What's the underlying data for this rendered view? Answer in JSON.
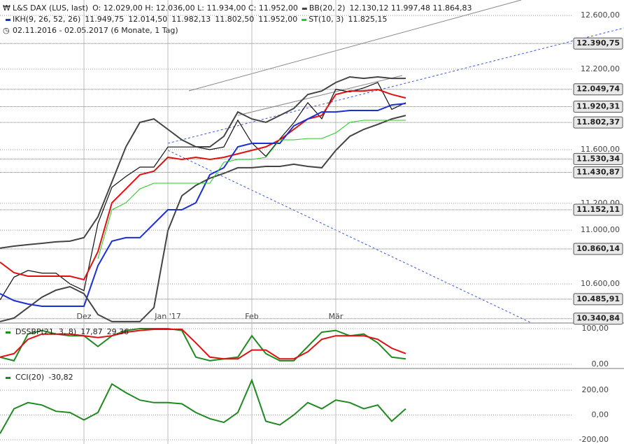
{
  "chart_data": {
    "type": "line",
    "header": "02.11.2016 - 02.05.2017   (6 Monate, 1 Tag)",
    "categories": [
      null,
      null,
      null,
      null,
      null,
      null,
      "Dez",
      null,
      null,
      null,
      null,
      null,
      "Jan '17",
      null,
      null,
      null,
      null,
      null,
      "Feb",
      null,
      null,
      null,
      null,
      null,
      "Mär",
      null,
      null,
      null,
      null,
      null
    ],
    "ylim": [
      10308,
      12715
    ],
    "yticks": [
      {
        "value": 12600,
        "label": "12.600,00"
      },
      {
        "value": 12200,
        "label": "12.200,00"
      },
      {
        "value": 11600,
        "label": "11.600,00"
      },
      {
        "value": 11200,
        "label": "11.200,00"
      },
      {
        "value": 11000,
        "label": "11.000,00"
      },
      {
        "value": 10600,
        "label": "10.600,00"
      }
    ],
    "annotations": [
      {
        "value": 12390.75,
        "label": "12.390,75"
      },
      {
        "value": 12049.74,
        "label": "12.049,74"
      },
      {
        "value": 11920.31,
        "label": "11.920,31"
      },
      {
        "value": 11802.37,
        "label": "11.802,37"
      },
      {
        "value": 11530.34,
        "label": "11.530,34"
      },
      {
        "value": 11430.87,
        "label": "11.430,87"
      },
      {
        "value": 11152.11,
        "label": "11.152,11"
      },
      {
        "value": 10860.14,
        "label": "10.860,14"
      },
      {
        "value": 10485.91,
        "label": "10.485,91"
      },
      {
        "value": 10340.84,
        "label": "10.340,84"
      }
    ],
    "series": [
      {
        "name": "L&S DAX (LUS, last)",
        "color": "#111111",
        "stats": [
          {
            "text": "O: 12.029,00  H: 12.036,00  L: 11.934,00  C: 11.952,00",
            "color": "#222222"
          }
        ],
        "values": [
          10480,
          10650,
          10700,
          10680,
          10680,
          10600,
          10550,
          11050,
          11320,
          11400,
          11470,
          11470,
          11620,
          11620,
          11620,
          11600,
          11620,
          11820,
          11650,
          11550,
          11680,
          11800,
          11950,
          11830,
          12050,
          12030,
          12060,
          12100,
          11900,
          11950
        ]
      },
      {
        "name": "IKH(9, 26, 52, 26)",
        "color": "#1a2fd6",
        "stats": [
          {
            "text": "11.949,75",
            "color": "#1a2fd6"
          },
          {
            "text": "12.014,50",
            "color": "#e01010"
          },
          {
            "text": "11.982,13",
            "color": "#1f8a1f"
          },
          {
            "text": "11.802,50",
            "color": "#1f8a1f"
          },
          {
            "text": "11.952,00",
            "color": "#c08a30"
          }
        ],
        "tenkan_color": "#e01010",
        "tenkan": [
          10762,
          10683,
          10657,
          10657,
          10657,
          10657,
          10631,
          10840,
          11204,
          11308,
          11413,
          11439,
          11543,
          11527,
          11543,
          11527,
          11543,
          11569,
          11595,
          11621,
          11673,
          11751,
          11829,
          11855,
          12011,
          12037,
          12037,
          12048,
          12011,
          11985
        ],
        "kijun": [
          10527,
          10475,
          10449,
          10433,
          10433,
          10433,
          10433,
          10735,
          10918,
          10944,
          10944,
          11048,
          11152,
          11152,
          11204,
          11413,
          11465,
          11621,
          11647,
          11647,
          11647,
          11777,
          11829,
          11881,
          11881,
          11892,
          11892,
          11892,
          11933,
          11944
        ]
      },
      {
        "name": "BB(20, 2)",
        "color": "#444444",
        "stats": [
          {
            "text": "12.130,12  11.997,48  11.864,83",
            "color": "#222222"
          }
        ],
        "upper": [
          10866,
          10881,
          10892,
          10902,
          10913,
          10918,
          10944,
          11100,
          11360,
          11621,
          11803,
          11829,
          11751,
          11673,
          11621,
          11621,
          11699,
          11881,
          11829,
          11803,
          11855,
          11907,
          12011,
          12037,
          12100,
          12142,
          12131,
          12142,
          12131,
          12131
        ],
        "lower": [
          10319,
          10345,
          10423,
          10501,
          10553,
          10579,
          10527,
          10371,
          10319,
          10319,
          10319,
          10423,
          10996,
          11256,
          11334,
          11387,
          11423,
          11465,
          11465,
          11475,
          11475,
          11491,
          11475,
          11465,
          11595,
          11699,
          11751,
          11788,
          11829,
          11855
        ]
      },
      {
        "name": "ST(10, 3)",
        "color": "#22cc22",
        "stats": [
          {
            "text": "11.825,15",
            "color": "#1f8a1f"
          }
        ],
        "values": [
          null,
          null,
          null,
          null,
          null,
          null,
          null,
          10788,
          11152,
          11204,
          11308,
          11350,
          11350,
          11350,
          11350,
          11350,
          11506,
          11527,
          11527,
          11543,
          11673,
          11673,
          11683,
          11683,
          11725,
          11803,
          11819,
          11819,
          11819,
          11819
        ]
      }
    ],
    "panels": [
      {
        "name": "DSSBP(21, 3, 8)",
        "ylim": [
          -11.8,
          115.7
        ],
        "yticks": [
          {
            "value": 100,
            "label": "100,00"
          },
          {
            "value": 0,
            "label": "0,00"
          }
        ],
        "series": [
          {
            "color": "#1f8a1f",
            "stat": "17,87",
            "values": [
              20,
              10,
              85,
              95,
              85,
              80,
              80,
              50,
              80,
              95,
              100,
              100,
              100,
              95,
              20,
              10,
              15,
              20,
              80,
              30,
              10,
              10,
              50,
              90,
              95,
              80,
              85,
              60,
              20,
              15
            ]
          },
          {
            "color": "#e01010",
            "stat": "29,36",
            "values": [
              20,
              30,
              70,
              85,
              85,
              85,
              80,
              75,
              80,
              90,
              95,
              98,
              98,
              98,
              60,
              20,
              15,
              15,
              40,
              40,
              15,
              15,
              35,
              70,
              80,
              80,
              80,
              70,
              45,
              30
            ]
          }
        ]
      },
      {
        "name": "CCI(20)",
        "ylim": [
          -234,
          375
        ],
        "yticks": [
          {
            "value": 200,
            "label": "200,00"
          },
          {
            "value": 0,
            "label": "0,00"
          },
          {
            "value": -200,
            "label": "-200,00"
          }
        ],
        "series": [
          {
            "color": "#1f8a1f",
            "stat": "-30,82",
            "values": [
              -150,
              50,
              100,
              80,
              30,
              20,
              -40,
              20,
              250,
              180,
              120,
              100,
              100,
              90,
              20,
              -30,
              -60,
              20,
              280,
              -50,
              -80,
              0,
              100,
              50,
              120,
              100,
              50,
              80,
              -50,
              50
            ]
          }
        ]
      }
    ]
  }
}
